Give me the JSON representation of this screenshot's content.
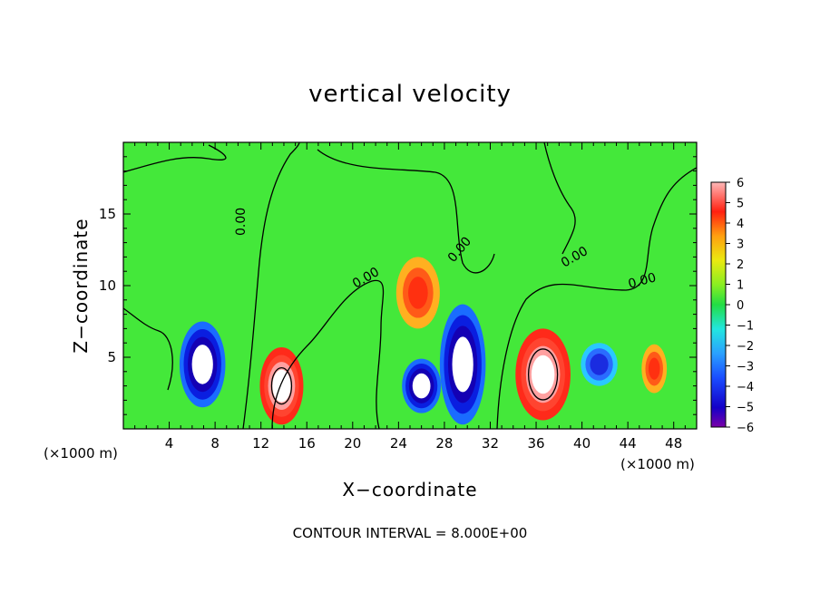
{
  "chart_data": {
    "type": "heatmap",
    "title": "vertical velocity",
    "xlabel": "X−coordinate",
    "ylabel": "Z−coordinate",
    "x_units": "(×1000 m)",
    "z_units": "(×1000 m)",
    "xlim": [
      0,
      50
    ],
    "zlim": [
      0,
      20
    ],
    "x_ticks": [
      4,
      8,
      12,
      16,
      20,
      24,
      28,
      32,
      36,
      40,
      44,
      48
    ],
    "z_ticks": [
      5,
      10,
      15
    ],
    "colorbar": {
      "range": [
        -6,
        6
      ],
      "labels": [
        "6",
        "5",
        "4",
        "3",
        "2",
        "1",
        "0",
        "−1",
        "−2",
        "−3",
        "−4",
        "−5",
        "−6"
      ]
    },
    "contour_label": "0.00",
    "contour_interval_text": "CONTOUR INTERVAL = 8.000E+00",
    "grid": false,
    "features": [
      {
        "x": 13.8,
        "z": 3.0,
        "sign": "updraft",
        "peak": 9
      },
      {
        "x": 36.6,
        "z": 3.8,
        "sign": "updraft",
        "peak": 10
      },
      {
        "x": 25.7,
        "z": 9.5,
        "sign": "updraft",
        "peak": 3.5
      },
      {
        "x": 6.9,
        "z": 4.5,
        "sign": "downdraft",
        "peak": -8
      },
      {
        "x": 29.6,
        "z": 4.5,
        "sign": "downdraft",
        "peak": -9
      },
      {
        "x": 26.0,
        "z": 3.0,
        "sign": "downdraft",
        "peak": -7
      },
      {
        "x": 41.5,
        "z": 4.5,
        "sign": "downdraft",
        "peak": -3.5
      },
      {
        "x": 46.3,
        "z": 4.2,
        "sign": "updraft",
        "peak": 3.5
      }
    ]
  }
}
